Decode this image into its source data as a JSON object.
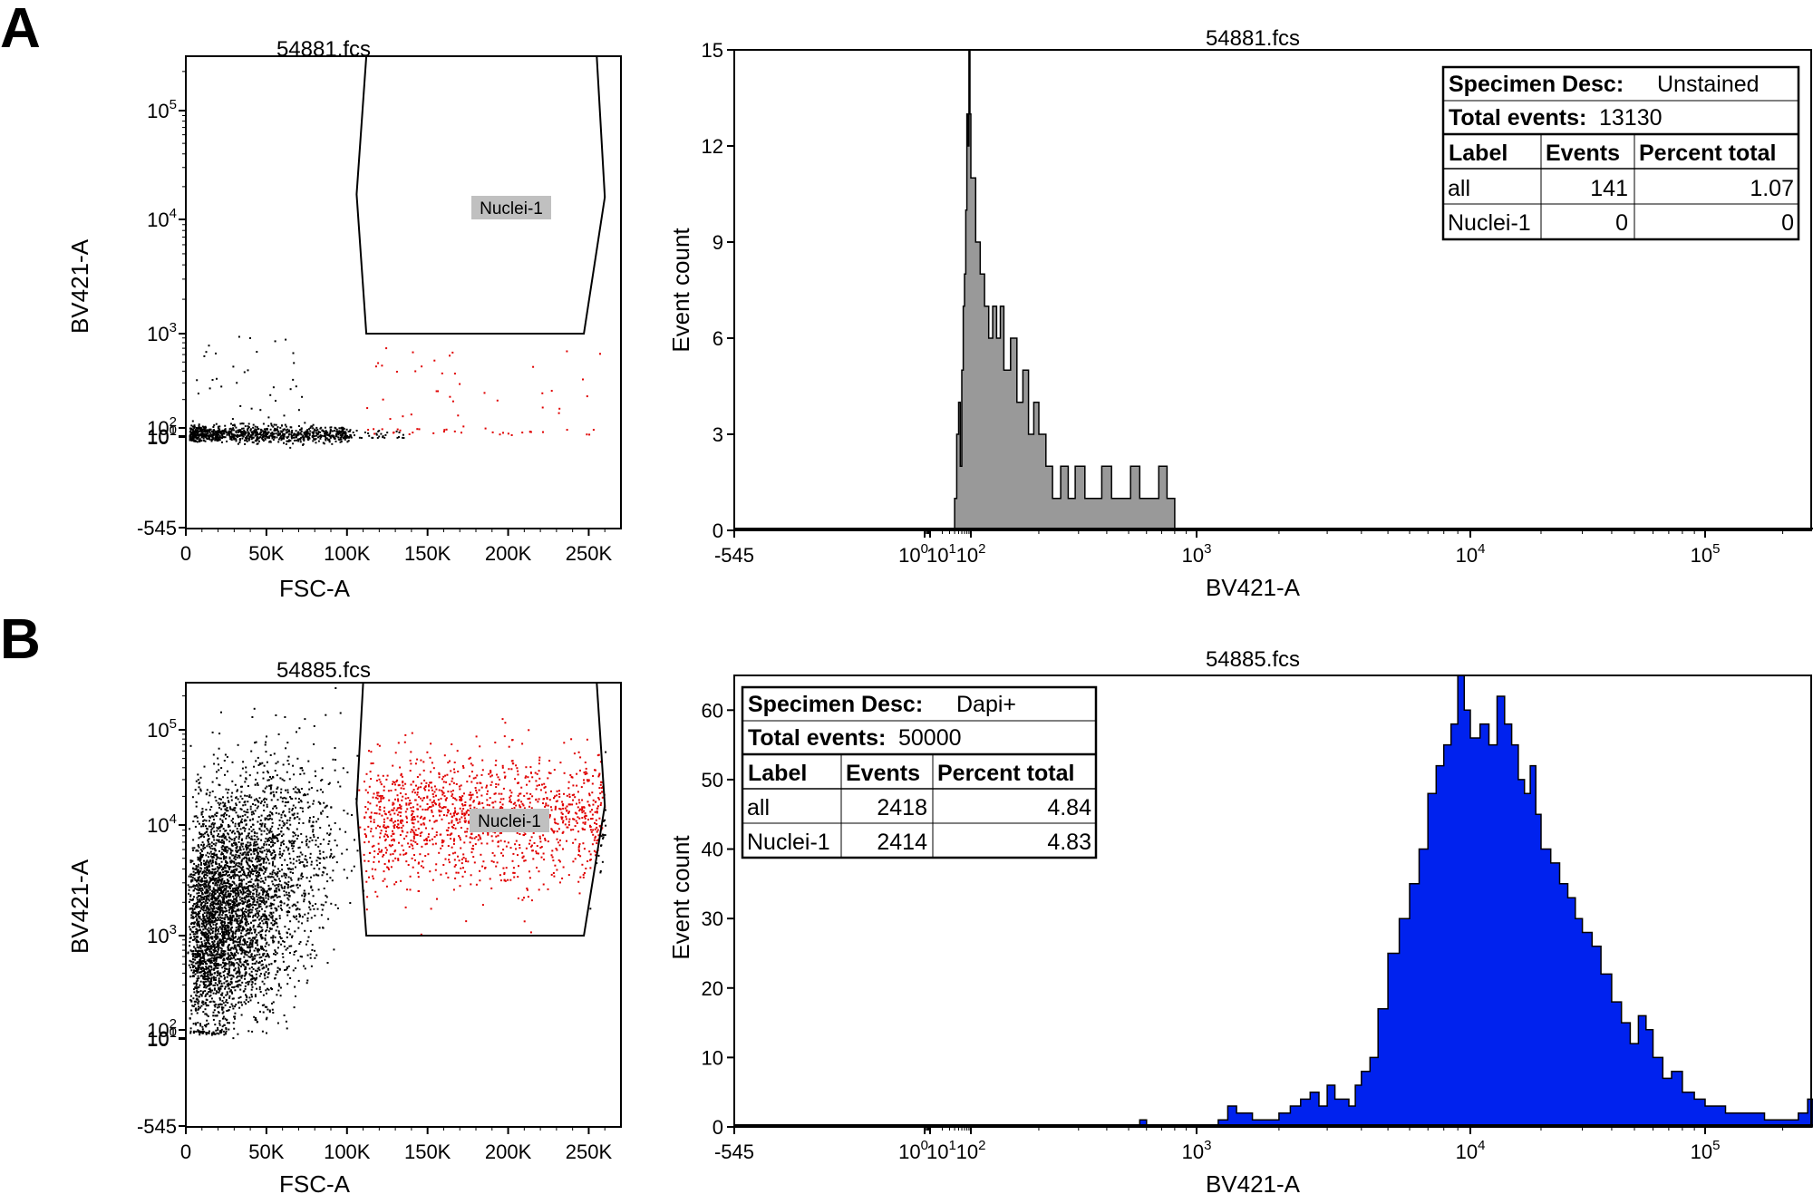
{
  "colors": {
    "axis": "#000000",
    "ungated_events": "#000000",
    "gated_events": "#e00000",
    "hist_fill_A": "#999999",
    "hist_fill_B": "#0022ee",
    "gate_label_bg": "#c0c0c0"
  },
  "chart_data": [
    {
      "panel": "A",
      "type": "scatter",
      "title": "54881.fcs",
      "xlabel": "FSC-A",
      "ylabel": "BV421-A",
      "xlim": [
        0,
        270000
      ],
      "x_ticks": [
        {
          "value": 0,
          "label": "0"
        },
        {
          "value": 50000,
          "label": "50K"
        },
        {
          "value": 100000,
          "label": "100K"
        },
        {
          "value": 150000,
          "label": "150K"
        },
        {
          "value": 200000,
          "label": "200K"
        },
        {
          "value": 250000,
          "label": "250K"
        }
      ],
      "y_scale": "biexponential",
      "ylim": [
        -545,
        262144
      ],
      "y_ticks": [
        {
          "value": -545,
          "label": "-545"
        },
        {
          "value": 1,
          "label": "10",
          "sup": "0"
        },
        {
          "value": 10,
          "label": "10",
          "sup": "1"
        },
        {
          "value": 100,
          "label": "10",
          "sup": "2"
        },
        {
          "value": 1000,
          "label": "10",
          "sup": "3"
        },
        {
          "value": 10000,
          "label": "10",
          "sup": "4"
        },
        {
          "value": 100000,
          "label": "10",
          "sup": "5"
        }
      ],
      "gate": {
        "name": "Nuclei-1",
        "vertices": [
          [
            112000,
            262144
          ],
          [
            255000,
            262144
          ],
          [
            260000,
            16000
          ],
          [
            247000,
            1000
          ],
          [
            112000,
            1000
          ],
          [
            106000,
            17000
          ]
        ]
      },
      "populations": [
        {
          "name": "all",
          "color": "#000000",
          "approx_events": 13130
        },
        {
          "name": "Nuclei-1",
          "color": "#e00000",
          "approx_events": 0
        }
      ]
    },
    {
      "panel": "A",
      "type": "histogram",
      "title": "54881.fcs",
      "xlabel": "BV421-A",
      "ylabel": "Event count",
      "x_scale": "biexponential",
      "xlim": [
        -545,
        262144
      ],
      "ylim": [
        0,
        15
      ],
      "y_ticks": [
        0,
        3,
        6,
        9,
        12,
        15
      ],
      "x_ticks": [
        {
          "value": -545,
          "label": "-545"
        },
        {
          "value": 1,
          "label": "10",
          "sup": "0"
        },
        {
          "value": 10,
          "label": "10",
          "sup": "1"
        },
        {
          "value": 100,
          "label": "10",
          "sup": "2"
        },
        {
          "value": 1000,
          "label": "10",
          "sup": "3"
        },
        {
          "value": 10000,
          "label": "10",
          "sup": "4"
        },
        {
          "value": 100000,
          "label": "10",
          "sup": "5"
        }
      ],
      "series": [
        {
          "name": "Unstained",
          "color": "#999999",
          "points": [
            [
              35,
              0
            ],
            [
              40,
              1
            ],
            [
              45,
              3
            ],
            [
              50,
              4
            ],
            [
              55,
              2
            ],
            [
              60,
              5
            ],
            [
              65,
              7
            ],
            [
              70,
              8
            ],
            [
              75,
              10
            ],
            [
              80,
              13
            ],
            [
              85,
              12
            ],
            [
              90,
              15
            ],
            [
              95,
              13
            ],
            [
              100,
              11
            ],
            [
              105,
              9
            ],
            [
              110,
              8
            ],
            [
              115,
              7
            ],
            [
              120,
              6
            ],
            [
              125,
              7
            ],
            [
              130,
              6
            ],
            [
              135,
              7
            ],
            [
              140,
              5
            ],
            [
              150,
              6
            ],
            [
              160,
              4
            ],
            [
              170,
              5
            ],
            [
              180,
              3
            ],
            [
              190,
              4
            ],
            [
              200,
              3
            ],
            [
              215,
              2
            ],
            [
              230,
              1
            ],
            [
              250,
              2
            ],
            [
              270,
              1
            ],
            [
              290,
              2
            ],
            [
              320,
              1
            ],
            [
              350,
              1
            ],
            [
              380,
              2
            ],
            [
              420,
              1
            ],
            [
              460,
              1
            ],
            [
              510,
              2
            ],
            [
              560,
              1
            ],
            [
              620,
              1
            ],
            [
              680,
              2
            ],
            [
              740,
              1
            ],
            [
              800,
              0
            ]
          ]
        }
      ],
      "stats": {
        "specimen_label": "Specimen Desc:",
        "specimen_value": "Unstained",
        "total_label": "Total events:",
        "total_value": "13130",
        "columns": [
          "Label",
          "Events",
          "Percent total"
        ],
        "rows": [
          [
            "all",
            "141",
            "1.07"
          ],
          [
            "Nuclei-1",
            "0",
            "0"
          ]
        ]
      }
    },
    {
      "panel": "B",
      "type": "scatter",
      "title": "54885.fcs",
      "xlabel": "FSC-A",
      "ylabel": "BV421-A",
      "xlim": [
        0,
        270000
      ],
      "x_ticks": [
        {
          "value": 0,
          "label": "0"
        },
        {
          "value": 50000,
          "label": "50K"
        },
        {
          "value": 100000,
          "label": "100K"
        },
        {
          "value": 150000,
          "label": "150K"
        },
        {
          "value": 200000,
          "label": "200K"
        },
        {
          "value": 250000,
          "label": "250K"
        }
      ],
      "y_scale": "biexponential",
      "ylim": [
        -545,
        262144
      ],
      "y_ticks": [
        {
          "value": -545,
          "label": "-545"
        },
        {
          "value": 1,
          "label": "10",
          "sup": "0"
        },
        {
          "value": 10,
          "label": "10",
          "sup": "1"
        },
        {
          "value": 100,
          "label": "10",
          "sup": "2"
        },
        {
          "value": 1000,
          "label": "10",
          "sup": "3"
        },
        {
          "value": 10000,
          "label": "10",
          "sup": "4"
        },
        {
          "value": 100000,
          "label": "10",
          "sup": "5"
        }
      ],
      "gate": {
        "name": "Nuclei-1",
        "vertices": [
          [
            110000,
            262144
          ],
          [
            255000,
            262144
          ],
          [
            260000,
            16000
          ],
          [
            247000,
            1000
          ],
          [
            112000,
            1000
          ],
          [
            106000,
            17000
          ]
        ]
      },
      "populations": [
        {
          "name": "all",
          "color": "#000000",
          "approx_events": 50000
        },
        {
          "name": "Nuclei-1",
          "color": "#e00000",
          "approx_events": 2414
        }
      ]
    },
    {
      "panel": "B",
      "type": "histogram",
      "title": "54885.fcs",
      "xlabel": "BV421-A",
      "ylabel": "Event count",
      "x_scale": "biexponential",
      "xlim": [
        -545,
        262144
      ],
      "ylim": [
        0,
        65
      ],
      "y_ticks": [
        0,
        10,
        20,
        30,
        40,
        50,
        60
      ],
      "x_ticks": [
        {
          "value": -545,
          "label": "-545"
        },
        {
          "value": 1,
          "label": "10",
          "sup": "0"
        },
        {
          "value": 10,
          "label": "10",
          "sup": "1"
        },
        {
          "value": 100,
          "label": "10",
          "sup": "2"
        },
        {
          "value": 1000,
          "label": "10",
          "sup": "3"
        },
        {
          "value": 10000,
          "label": "10",
          "sup": "4"
        },
        {
          "value": 100000,
          "label": "10",
          "sup": "5"
        }
      ],
      "series": [
        {
          "name": "Dapi+",
          "color": "#0022ee",
          "points": [
            [
              500,
              0
            ],
            [
              560,
              1
            ],
            [
              600,
              0
            ],
            [
              1100,
              0
            ],
            [
              1200,
              1
            ],
            [
              1300,
              3
            ],
            [
              1400,
              2
            ],
            [
              1600,
              1
            ],
            [
              1800,
              1
            ],
            [
              2000,
              2
            ],
            [
              2200,
              3
            ],
            [
              2400,
              4
            ],
            [
              2600,
              5
            ],
            [
              2800,
              3
            ],
            [
              3000,
              6
            ],
            [
              3200,
              4
            ],
            [
              3400,
              4
            ],
            [
              3600,
              3
            ],
            [
              3800,
              6
            ],
            [
              4000,
              8
            ],
            [
              4300,
              10
            ],
            [
              4600,
              17
            ],
            [
              5000,
              25
            ],
            [
              5500,
              30
            ],
            [
              6000,
              35
            ],
            [
              6500,
              40
            ],
            [
              7000,
              48
            ],
            [
              7500,
              52
            ],
            [
              8000,
              55
            ],
            [
              8500,
              58
            ],
            [
              9000,
              65
            ],
            [
              9500,
              60
            ],
            [
              10000,
              56
            ],
            [
              11000,
              58
            ],
            [
              12000,
              55
            ],
            [
              13000,
              62
            ],
            [
              14000,
              58
            ],
            [
              15000,
              55
            ],
            [
              16000,
              50
            ],
            [
              17000,
              48
            ],
            [
              18000,
              52
            ],
            [
              19000,
              45
            ],
            [
              20000,
              40
            ],
            [
              22000,
              38
            ],
            [
              24000,
              35
            ],
            [
              26000,
              33
            ],
            [
              28000,
              30
            ],
            [
              30000,
              28
            ],
            [
              33000,
              26
            ],
            [
              36000,
              22
            ],
            [
              40000,
              18
            ],
            [
              44000,
              15
            ],
            [
              48000,
              12
            ],
            [
              52000,
              16
            ],
            [
              56000,
              14
            ],
            [
              60000,
              10
            ],
            [
              66000,
              7
            ],
            [
              72000,
              8
            ],
            [
              80000,
              5
            ],
            [
              90000,
              4
            ],
            [
              100000,
              3
            ],
            [
              120000,
              2
            ],
            [
              140000,
              2
            ],
            [
              170000,
              1
            ],
            [
              200000,
              1
            ],
            [
              230000,
              2
            ],
            [
              250000,
              4
            ],
            [
              262144,
              0
            ]
          ]
        }
      ],
      "stats": {
        "specimen_label": "Specimen Desc:",
        "specimen_value": "Dapi+",
        "total_label": "Total events:",
        "total_value": "50000",
        "columns": [
          "Label",
          "Events",
          "Percent total"
        ],
        "rows": [
          [
            "all",
            "2418",
            "4.84"
          ],
          [
            "Nuclei-1",
            "2414",
            "4.83"
          ]
        ]
      }
    }
  ],
  "panel_letters": [
    "A",
    "B"
  ]
}
